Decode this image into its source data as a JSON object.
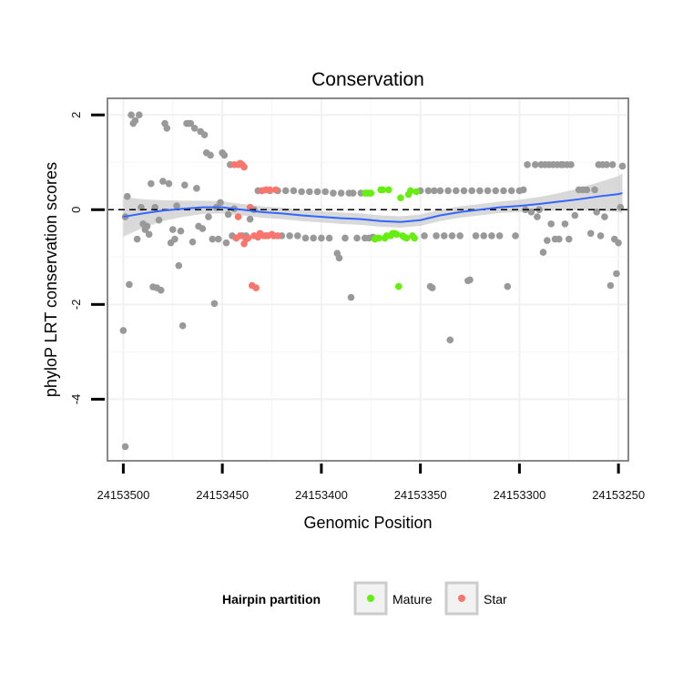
{
  "chart_data": {
    "type": "scatter",
    "title": "Conservation",
    "xlabel": "Genomic Position",
    "ylabel": "phyloP LRT conservation scores",
    "x_reversed": true,
    "xlim": [
      24153508,
      24153245
    ],
    "ylim": [
      -5.3,
      2.35
    ],
    "x_ticks": [
      24153500,
      24153450,
      24153400,
      24153350,
      24153300,
      24153250
    ],
    "x_tick_labels": [
      "24153500",
      "24153450",
      "24153400",
      "24153350",
      "24153300",
      "24153250"
    ],
    "y_ticks": [
      2,
      0,
      -2,
      -4
    ],
    "y_tick_labels": [
      "2",
      "0",
      "-2",
      "-4"
    ],
    "reference_line": {
      "y": 0,
      "style": "dashed"
    },
    "grid": true,
    "legend": {
      "title": "Hairpin partition",
      "position": "bottom",
      "entries": [
        {
          "label": "Mature",
          "color": "#66ee11"
        },
        {
          "label": "Star",
          "color": "#f8766d"
        }
      ]
    },
    "colors": {
      "other": "#999999",
      "mature": "#66ee11",
      "star": "#f8766d",
      "smooth": "#3366ff",
      "band": "#cccccc"
    },
    "series": [
      {
        "group": "other",
        "points": [
          [
            24153500,
            -2.55
          ],
          [
            24153499,
            -0.15
          ],
          [
            24153498,
            0.28
          ],
          [
            24153497,
            -1.58
          ],
          [
            24153496,
            2.0
          ],
          [
            24153495,
            1.82
          ],
          [
            24153494,
            1.88
          ],
          [
            24153493,
            -0.62
          ],
          [
            24153492,
            2.0
          ],
          [
            24153491,
            0.05
          ],
          [
            24153490,
            -0.3
          ],
          [
            24153489,
            -0.42
          ],
          [
            24153488,
            -0.35
          ],
          [
            24153487,
            -0.52
          ],
          [
            24153486,
            0.55
          ],
          [
            24153485,
            -1.63
          ],
          [
            24153484,
            0.05
          ],
          [
            24153483,
            -1.65
          ],
          [
            24153482,
            -0.22
          ],
          [
            24153481,
            -1.7
          ],
          [
            24153480,
            0.6
          ],
          [
            24153479,
            1.82
          ],
          [
            24153478,
            1.72
          ],
          [
            24153477,
            0.55
          ],
          [
            24153476,
            -0.7
          ],
          [
            24153475,
            -0.42
          ],
          [
            24153474,
            -0.62
          ],
          [
            24153473,
            0.08
          ],
          [
            24153472,
            -1.18
          ],
          [
            24153471,
            -0.45
          ],
          [
            24153470,
            -2.45
          ],
          [
            24153469,
            0.52
          ],
          [
            24153468,
            1.82
          ],
          [
            24153467,
            1.82
          ],
          [
            24153466,
            1.82
          ],
          [
            24153465,
            -0.68
          ],
          [
            24153464,
            1.72
          ],
          [
            24153463,
            0.45
          ],
          [
            24153462,
            -0.35
          ],
          [
            24153461,
            1.65
          ],
          [
            24153460,
            -0.4
          ],
          [
            24153459,
            1.58
          ],
          [
            24153458,
            1.2
          ],
          [
            24153457,
            -0.15
          ],
          [
            24153456,
            1.15
          ],
          [
            24153455,
            -0.62
          ],
          [
            24153454,
            -1.98
          ],
          [
            24153453,
            0.05
          ],
          [
            24153452,
            -0.62
          ],
          [
            24153451,
            0.15
          ],
          [
            24153450,
            1.2
          ],
          [
            24153449,
            1.15
          ],
          [
            24153448,
            -0.7
          ],
          [
            24153447,
            -0.1
          ],
          [
            24153446,
            0.95
          ],
          [
            24153445,
            -0.55
          ],
          [
            24153444,
            0.02
          ],
          [
            24153443,
            -0.6
          ],
          [
            24153440,
            -0.55
          ],
          [
            24153438,
            -0.55
          ],
          [
            24153436,
            -0.2
          ],
          [
            24153434,
            0.0
          ],
          [
            24153432,
            0.4
          ],
          [
            24153430,
            0.4
          ],
          [
            24153428,
            -0.55
          ],
          [
            24153426,
            0.4
          ],
          [
            24153424,
            -0.55
          ],
          [
            24153422,
            0.4
          ],
          [
            24153420,
            -0.55
          ],
          [
            24153418,
            0.4
          ],
          [
            24153416,
            -0.55
          ],
          [
            24153414,
            0.4
          ],
          [
            24153412,
            -0.55
          ],
          [
            24153410,
            0.38
          ],
          [
            24153408,
            -0.6
          ],
          [
            24153406,
            0.38
          ],
          [
            24153404,
            -0.6
          ],
          [
            24153402,
            0.38
          ],
          [
            24153400,
            -0.6
          ],
          [
            24153398,
            0.38
          ],
          [
            24153396,
            -0.6
          ],
          [
            24153394,
            0.35
          ],
          [
            24153392,
            -0.92
          ],
          [
            24153391,
            -1.02
          ],
          [
            24153390,
            0.35
          ],
          [
            24153388,
            -0.6
          ],
          [
            24153386,
            0.35
          ],
          [
            24153385,
            -1.85
          ],
          [
            24153384,
            0.35
          ],
          [
            24153382,
            -0.6
          ],
          [
            24153380,
            0.35
          ],
          [
            24153378,
            -0.6
          ],
          [
            24153376,
            -0.6
          ],
          [
            24153374,
            -0.58
          ],
          [
            24153350,
            0.4
          ],
          [
            24153348,
            -0.55
          ],
          [
            24153346,
            0.4
          ],
          [
            24153345,
            -1.62
          ],
          [
            24153344,
            -1.65
          ],
          [
            24153343,
            0.4
          ],
          [
            24153342,
            -0.55
          ],
          [
            24153340,
            0.4
          ],
          [
            24153338,
            -0.55
          ],
          [
            24153336,
            0.4
          ],
          [
            24153335,
            -2.75
          ],
          [
            24153334,
            -0.55
          ],
          [
            24153332,
            0.4
          ],
          [
            24153330,
            -0.55
          ],
          [
            24153328,
            0.4
          ],
          [
            24153326,
            -1.5
          ],
          [
            24153325,
            -1.48
          ],
          [
            24153324,
            0.4
          ],
          [
            24153322,
            -0.55
          ],
          [
            24153320,
            0.4
          ],
          [
            24153318,
            -0.55
          ],
          [
            24153316,
            0.4
          ],
          [
            24153314,
            -0.55
          ],
          [
            24153312,
            0.4
          ],
          [
            24153310,
            -0.55
          ],
          [
            24153308,
            0.4
          ],
          [
            24153306,
            -1.62
          ],
          [
            24153304,
            0.4
          ],
          [
            24153302,
            -0.55
          ],
          [
            24153300,
            0.4
          ],
          [
            24153298,
            0.42
          ],
          [
            24153297,
            0.0
          ],
          [
            24153296,
            0.95
          ],
          [
            24153294,
            -0.05
          ],
          [
            24153292,
            0.95
          ],
          [
            24153291,
            -0.15
          ],
          [
            24153290,
            0.0
          ],
          [
            24153289,
            0.95
          ],
          [
            24153288,
            -0.9
          ],
          [
            24153287,
            0.95
          ],
          [
            24153286,
            -0.65
          ],
          [
            24153285,
            0.95
          ],
          [
            24153284,
            -0.3
          ],
          [
            24153283,
            0.95
          ],
          [
            24153282,
            -0.62
          ],
          [
            24153281,
            0.95
          ],
          [
            24153280,
            -0.62
          ],
          [
            24153279,
            0.95
          ],
          [
            24153278,
            0.95
          ],
          [
            24153277,
            -0.3
          ],
          [
            24153276,
            0.95
          ],
          [
            24153275,
            -0.62
          ],
          [
            24153274,
            0.95
          ],
          [
            24153272,
            -0.12
          ],
          [
            24153270,
            0.42
          ],
          [
            24153268,
            0.42
          ],
          [
            24153266,
            0.42
          ],
          [
            24153264,
            -0.5
          ],
          [
            24153262,
            0.42
          ],
          [
            24153261,
            -0.05
          ],
          [
            24153260,
            0.95
          ],
          [
            24153259,
            -0.55
          ],
          [
            24153258,
            0.95
          ],
          [
            24153257,
            -0.15
          ],
          [
            24153256,
            0.95
          ],
          [
            24153254,
            -1.6
          ],
          [
            24153253,
            0.95
          ],
          [
            24153252,
            -0.62
          ],
          [
            24153251,
            -1.35
          ],
          [
            24153250,
            -0.7
          ],
          [
            24153249,
            0.05
          ],
          [
            24153248,
            0.92
          ],
          [
            24153499,
            -5.0
          ]
        ]
      },
      {
        "group": "mature",
        "points": [
          [
            24153378,
            0.35
          ],
          [
            24153377,
            0.35
          ],
          [
            24153376,
            0.35
          ],
          [
            24153375,
            0.35
          ],
          [
            24153373,
            -0.62
          ],
          [
            24153372,
            -0.6
          ],
          [
            24153371,
            -0.6
          ],
          [
            24153370,
            0.42
          ],
          [
            24153369,
            0.42
          ],
          [
            24153368,
            -0.6
          ],
          [
            24153367,
            -0.55
          ],
          [
            24153366,
            0.42
          ],
          [
            24153365,
            -0.55
          ],
          [
            24153364,
            -0.5
          ],
          [
            24153363,
            -0.5
          ],
          [
            24153362,
            -0.52
          ],
          [
            24153361,
            -1.62
          ],
          [
            24153360,
            0.25
          ],
          [
            24153359,
            -0.55
          ],
          [
            24153358,
            -0.58
          ],
          [
            24153357,
            -0.6
          ],
          [
            24153356,
            0.32
          ],
          [
            24153355,
            0.4
          ],
          [
            24153354,
            -0.55
          ],
          [
            24153353,
            -0.6
          ],
          [
            24153352,
            0.38
          ]
        ]
      },
      {
        "group": "star",
        "points": [
          [
            24153444,
            0.95
          ],
          [
            24153442,
            0.95
          ],
          [
            24153441,
            0.98
          ],
          [
            24153440,
            0.95
          ],
          [
            24153439,
            0.9
          ],
          [
            24153443,
            -0.6
          ],
          [
            24153442,
            -0.15
          ],
          [
            24153441,
            -0.55
          ],
          [
            24153439,
            -0.72
          ],
          [
            24153438,
            -0.62
          ],
          [
            24153437,
            -0.6
          ],
          [
            24153436,
            0.05
          ],
          [
            24153435,
            -1.6
          ],
          [
            24153434,
            -0.55
          ],
          [
            24153433,
            -1.65
          ],
          [
            24153432,
            -0.58
          ],
          [
            24153431,
            -0.5
          ],
          [
            24153430,
            0.4
          ],
          [
            24153429,
            -0.55
          ],
          [
            24153428,
            0.42
          ],
          [
            24153427,
            -0.55
          ],
          [
            24153426,
            0.42
          ],
          [
            24153425,
            -0.52
          ],
          [
            24153424,
            -0.55
          ],
          [
            24153423,
            0.42
          ],
          [
            24153422,
            -0.55
          ]
        ]
      }
    ],
    "smooth": [
      [
        24153500,
        -0.15
      ],
      [
        24153490,
        -0.08
      ],
      [
        24153480,
        -0.02
      ],
      [
        24153470,
        0.02
      ],
      [
        24153460,
        0.05
      ],
      [
        24153450,
        0.05
      ],
      [
        24153440,
        0.0
      ],
      [
        24153430,
        -0.05
      ],
      [
        24153420,
        -0.08
      ],
      [
        24153410,
        -0.12
      ],
      [
        24153400,
        -0.15
      ],
      [
        24153390,
        -0.18
      ],
      [
        24153380,
        -0.2
      ],
      [
        24153370,
        -0.24
      ],
      [
        24153360,
        -0.26
      ],
      [
        24153350,
        -0.22
      ],
      [
        24153340,
        -0.12
      ],
      [
        24153330,
        -0.05
      ],
      [
        24153320,
        0.0
      ],
      [
        24153310,
        0.05
      ],
      [
        24153300,
        0.08
      ],
      [
        24153290,
        0.12
      ],
      [
        24153280,
        0.17
      ],
      [
        24153270,
        0.22
      ],
      [
        24153260,
        0.28
      ],
      [
        24153250,
        0.33
      ],
      [
        24153248,
        0.35
      ]
    ],
    "band_halfwidth": [
      0.42,
      0.3,
      0.22,
      0.17,
      0.14,
      0.13,
      0.12,
      0.12,
      0.12,
      0.12,
      0.12,
      0.12,
      0.12,
      0.12,
      0.12,
      0.12,
      0.12,
      0.12,
      0.12,
      0.12,
      0.13,
      0.15,
      0.18,
      0.23,
      0.3,
      0.38,
      0.42
    ]
  }
}
